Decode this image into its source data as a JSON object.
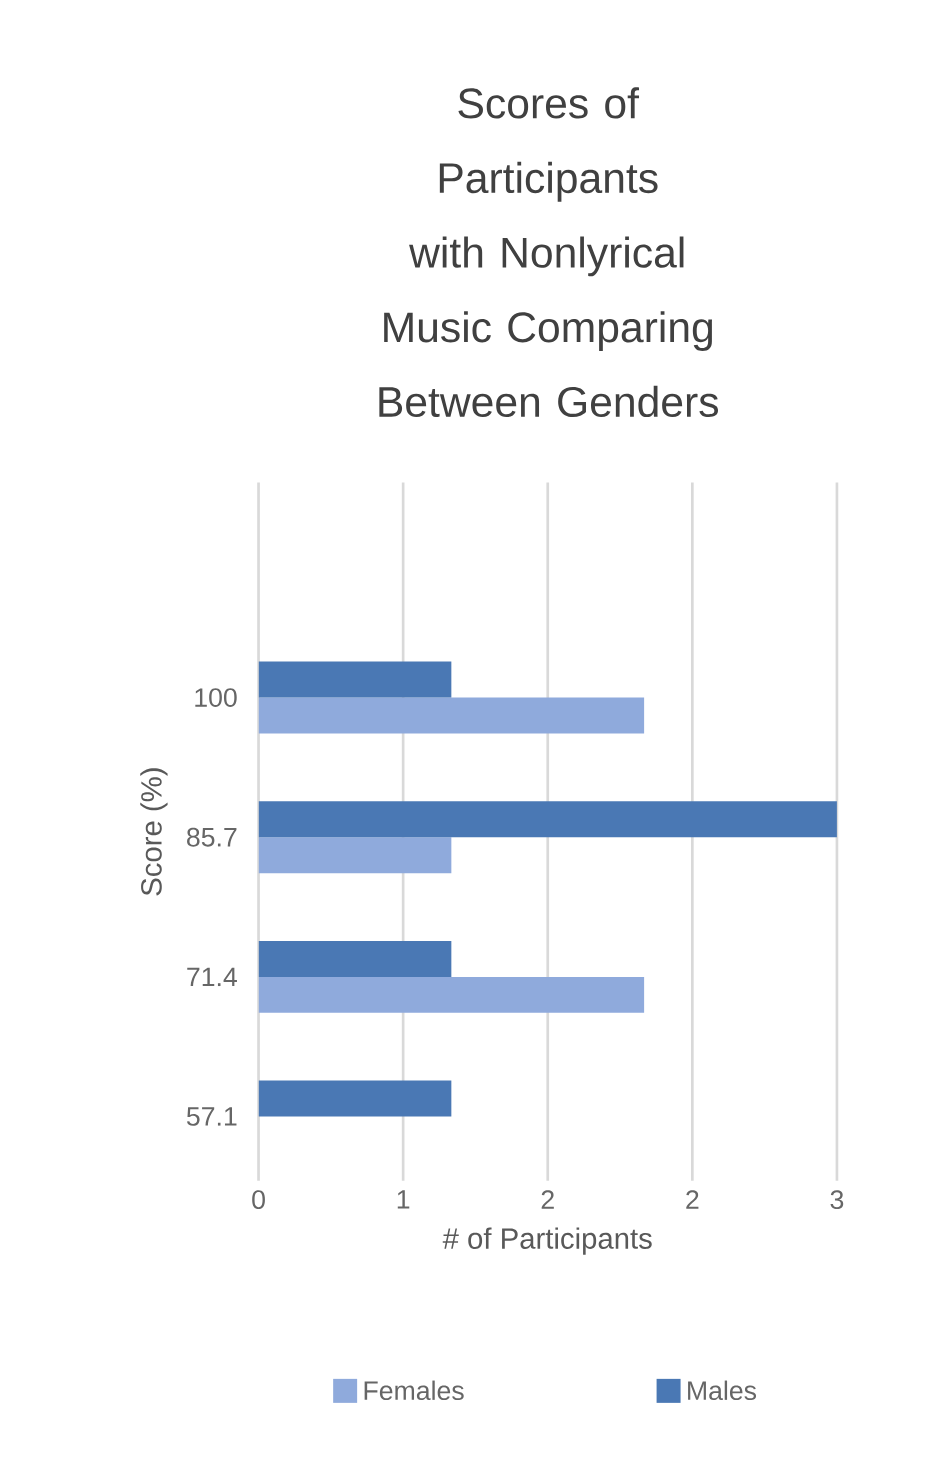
{
  "chart_data": {
    "type": "bar",
    "orientation": "horizontal",
    "title": "Scores of Participants with Nonlyrical Music Comparing Between Genders",
    "xlabel": "# of Participants",
    "ylabel": "Score (%)",
    "categories": [
      "100",
      "85.7",
      "71.4",
      "57.1"
    ],
    "series": [
      {
        "name": "Females",
        "color": "#8faadc",
        "values": [
          2,
          1,
          2,
          null
        ]
      },
      {
        "name": "Males",
        "color": "#4a78b4",
        "values": [
          1,
          3,
          1,
          1
        ]
      }
    ],
    "xlim": [
      0,
      3
    ],
    "xticks": [
      {
        "value": 0,
        "label": "0"
      },
      {
        "value": 0.75,
        "label": "1"
      },
      {
        "value": 1.5,
        "label": "2"
      },
      {
        "value": 2.25,
        "label": "2"
      },
      {
        "value": 3,
        "label": "3"
      }
    ],
    "grid": "x",
    "legend": "bottom"
  }
}
